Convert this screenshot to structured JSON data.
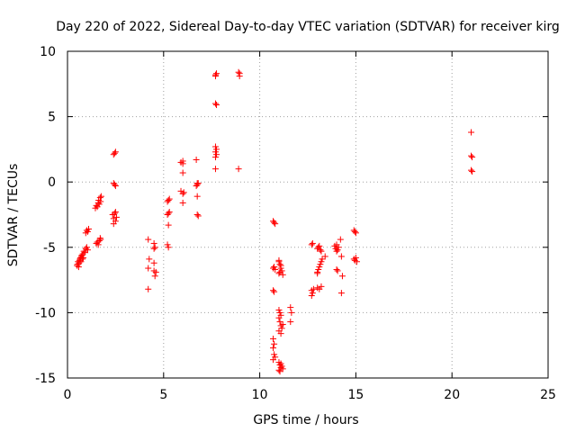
{
  "chart_data": {
    "type": "scatter",
    "title": "Day 220 of 2022, Sidereal Day-to-day VTEC variation (SDTVAR) for receiver kirg",
    "xlabel": "GPS time / hours",
    "ylabel": "SDTVAR / TECUs",
    "xlim": [
      0,
      25
    ],
    "ylim": [
      -15,
      10
    ],
    "xticks": [
      "0",
      "5",
      "10",
      "15",
      "20",
      "25"
    ],
    "yticks": [
      "10",
      "5",
      "0",
      "-5",
      "-10",
      "-15"
    ],
    "grid": true,
    "marker": "+",
    "marker_color": "#ff0000",
    "series": [
      {
        "name": "SDTVAR",
        "points": [
          [
            0.5,
            -6.4
          ],
          [
            0.52,
            -6.3
          ],
          [
            0.55,
            -6.1
          ],
          [
            0.58,
            -6.5
          ],
          [
            0.6,
            -6.2
          ],
          [
            0.62,
            -6.0
          ],
          [
            0.65,
            -5.9
          ],
          [
            0.68,
            -5.8
          ],
          [
            0.7,
            -6.1
          ],
          [
            0.72,
            -5.7
          ],
          [
            0.75,
            -5.6
          ],
          [
            0.78,
            -5.9
          ],
          [
            0.8,
            -5.5
          ],
          [
            0.82,
            -5.8
          ],
          [
            0.85,
            -5.3
          ],
          [
            0.9,
            -5.4
          ],
          [
            0.95,
            -5.1
          ],
          [
            1.0,
            -5.0
          ],
          [
            1.05,
            -5.2
          ],
          [
            0.95,
            -3.9
          ],
          [
            1.0,
            -3.7
          ],
          [
            1.05,
            -3.8
          ],
          [
            1.1,
            -3.6
          ],
          [
            1.45,
            -2.0
          ],
          [
            1.5,
            -1.8
          ],
          [
            1.55,
            -1.9
          ],
          [
            1.6,
            -1.6
          ],
          [
            1.62,
            -1.4
          ],
          [
            1.65,
            -1.7
          ],
          [
            1.7,
            -1.2
          ],
          [
            1.72,
            -1.5
          ],
          [
            1.75,
            -1.1
          ],
          [
            1.5,
            -4.7
          ],
          [
            1.55,
            -4.6
          ],
          [
            1.6,
            -4.8
          ],
          [
            1.65,
            -4.5
          ],
          [
            1.7,
            -4.3
          ],
          [
            1.72,
            -4.4
          ],
          [
            2.4,
            -0.1
          ],
          [
            2.45,
            -0.2
          ],
          [
            2.5,
            -0.3
          ],
          [
            2.4,
            2.1
          ],
          [
            2.45,
            2.2
          ],
          [
            2.5,
            2.3
          ],
          [
            2.35,
            -2.5
          ],
          [
            2.4,
            -2.8
          ],
          [
            2.45,
            -2.4
          ],
          [
            2.5,
            -3.0
          ],
          [
            2.55,
            -2.7
          ],
          [
            2.4,
            -3.2
          ],
          [
            2.5,
            -2.3
          ],
          [
            4.2,
            -4.4
          ],
          [
            4.25,
            -5.9
          ],
          [
            4.2,
            -6.6
          ],
          [
            4.2,
            -8.2
          ],
          [
            4.5,
            -4.7
          ],
          [
            4.5,
            -5.1
          ],
          [
            4.55,
            -5.0
          ],
          [
            4.5,
            -6.2
          ],
          [
            4.5,
            -6.8
          ],
          [
            4.55,
            -7.2
          ],
          [
            4.6,
            -6.9
          ],
          [
            5.2,
            -1.5
          ],
          [
            5.25,
            -1.4
          ],
          [
            5.3,
            -1.3
          ],
          [
            5.2,
            -2.5
          ],
          [
            5.25,
            -2.4
          ],
          [
            5.3,
            -2.3
          ],
          [
            5.25,
            -3.3
          ],
          [
            5.2,
            -4.8
          ],
          [
            5.25,
            -5.0
          ],
          [
            5.9,
            1.5
          ],
          [
            6.0,
            1.6
          ],
          [
            6.0,
            1.4
          ],
          [
            6.0,
            0.7
          ],
          [
            5.9,
            -0.7
          ],
          [
            6.0,
            -0.9
          ],
          [
            6.05,
            -0.8
          ],
          [
            6.0,
            -1.6
          ],
          [
            6.7,
            1.7
          ],
          [
            6.75,
            -0.1
          ],
          [
            6.7,
            -0.3
          ],
          [
            6.75,
            -0.2
          ],
          [
            6.8,
            -0.1
          ],
          [
            6.75,
            -1.1
          ],
          [
            6.8,
            -2.6
          ],
          [
            6.75,
            -2.5
          ],
          [
            7.7,
            8.2
          ],
          [
            7.7,
            8.1
          ],
          [
            7.75,
            8.3
          ],
          [
            7.7,
            6.0
          ],
          [
            7.75,
            5.9
          ],
          [
            7.7,
            2.7
          ],
          [
            7.75,
            2.5
          ],
          [
            7.7,
            2.3
          ],
          [
            7.75,
            2.1
          ],
          [
            7.7,
            1.9
          ],
          [
            7.7,
            1.0
          ],
          [
            8.9,
            8.4
          ],
          [
            8.95,
            8.3
          ],
          [
            8.95,
            8.1
          ],
          [
            8.9,
            1.0
          ],
          [
            10.7,
            -3.0
          ],
          [
            10.75,
            -3.1
          ],
          [
            10.8,
            -3.2
          ],
          [
            10.7,
            -6.6
          ],
          [
            10.75,
            -6.5
          ],
          [
            10.8,
            -6.7
          ],
          [
            10.7,
            -8.3
          ],
          [
            10.75,
            -8.4
          ],
          [
            10.7,
            -12.0
          ],
          [
            10.75,
            -12.4
          ],
          [
            10.7,
            -12.7
          ],
          [
            10.75,
            -13.2
          ],
          [
            10.8,
            -13.4
          ],
          [
            10.7,
            -13.6
          ],
          [
            11.0,
            -6.0
          ],
          [
            11.05,
            -6.3
          ],
          [
            11.1,
            -6.6
          ],
          [
            11.15,
            -6.8
          ],
          [
            11.0,
            -7.0
          ],
          [
            11.1,
            -6.4
          ],
          [
            11.05,
            -6.9
          ],
          [
            11.2,
            -7.1
          ],
          [
            11.0,
            -6.1
          ],
          [
            11.0,
            -9.8
          ],
          [
            11.05,
            -10.0
          ],
          [
            11.1,
            -10.2
          ],
          [
            11.0,
            -10.4
          ],
          [
            11.05,
            -10.7
          ],
          [
            11.1,
            -11.0
          ],
          [
            11.15,
            -11.2
          ],
          [
            11.0,
            -11.4
          ],
          [
            11.1,
            -11.6
          ],
          [
            11.2,
            -10.9
          ],
          [
            11.0,
            -13.8
          ],
          [
            11.05,
            -14.0
          ],
          [
            11.1,
            -14.2
          ],
          [
            11.0,
            -14.4
          ],
          [
            11.15,
            -14.1
          ],
          [
            11.05,
            -14.5
          ],
          [
            11.2,
            -14.3
          ],
          [
            11.1,
            -13.9
          ],
          [
            11.6,
            -9.6
          ],
          [
            11.65,
            -10.0
          ],
          [
            11.6,
            -10.7
          ],
          [
            12.7,
            -4.8
          ],
          [
            12.75,
            -4.7
          ],
          [
            12.7,
            -8.3
          ],
          [
            12.75,
            -8.5
          ],
          [
            12.8,
            -8.2
          ],
          [
            12.7,
            -8.7
          ],
          [
            13.0,
            -5.1
          ],
          [
            13.05,
            -5.0
          ],
          [
            13.1,
            -4.9
          ],
          [
            13.15,
            -5.2
          ],
          [
            13.2,
            -5.3
          ],
          [
            13.0,
            -7.0
          ],
          [
            13.05,
            -6.7
          ],
          [
            13.1,
            -6.5
          ],
          [
            13.15,
            -6.3
          ],
          [
            13.2,
            -6.1
          ],
          [
            13.25,
            -5.9
          ],
          [
            13.0,
            -6.9
          ],
          [
            13.0,
            -8.1
          ],
          [
            13.1,
            -8.2
          ],
          [
            13.2,
            -8.0
          ],
          [
            13.4,
            -5.7
          ],
          [
            13.9,
            -4.9
          ],
          [
            13.95,
            -5.1
          ],
          [
            14.0,
            -4.8
          ],
          [
            14.05,
            -5.2
          ],
          [
            14.1,
            -5.0
          ],
          [
            14.0,
            -5.3
          ],
          [
            14.0,
            -6.7
          ],
          [
            14.05,
            -6.8
          ],
          [
            14.2,
            -4.4
          ],
          [
            14.25,
            -5.7
          ],
          [
            14.3,
            -7.2
          ],
          [
            14.25,
            -8.5
          ],
          [
            14.9,
            -3.7
          ],
          [
            14.95,
            -3.8
          ],
          [
            15.0,
            -3.9
          ],
          [
            14.9,
            -5.9
          ],
          [
            14.95,
            -6.0
          ],
          [
            15.0,
            -5.8
          ],
          [
            15.05,
            -6.1
          ],
          [
            21.0,
            3.8
          ],
          [
            21.0,
            2.0
          ],
          [
            21.05,
            1.9
          ],
          [
            21.0,
            0.9
          ],
          [
            21.05,
            0.8
          ]
        ]
      }
    ]
  }
}
